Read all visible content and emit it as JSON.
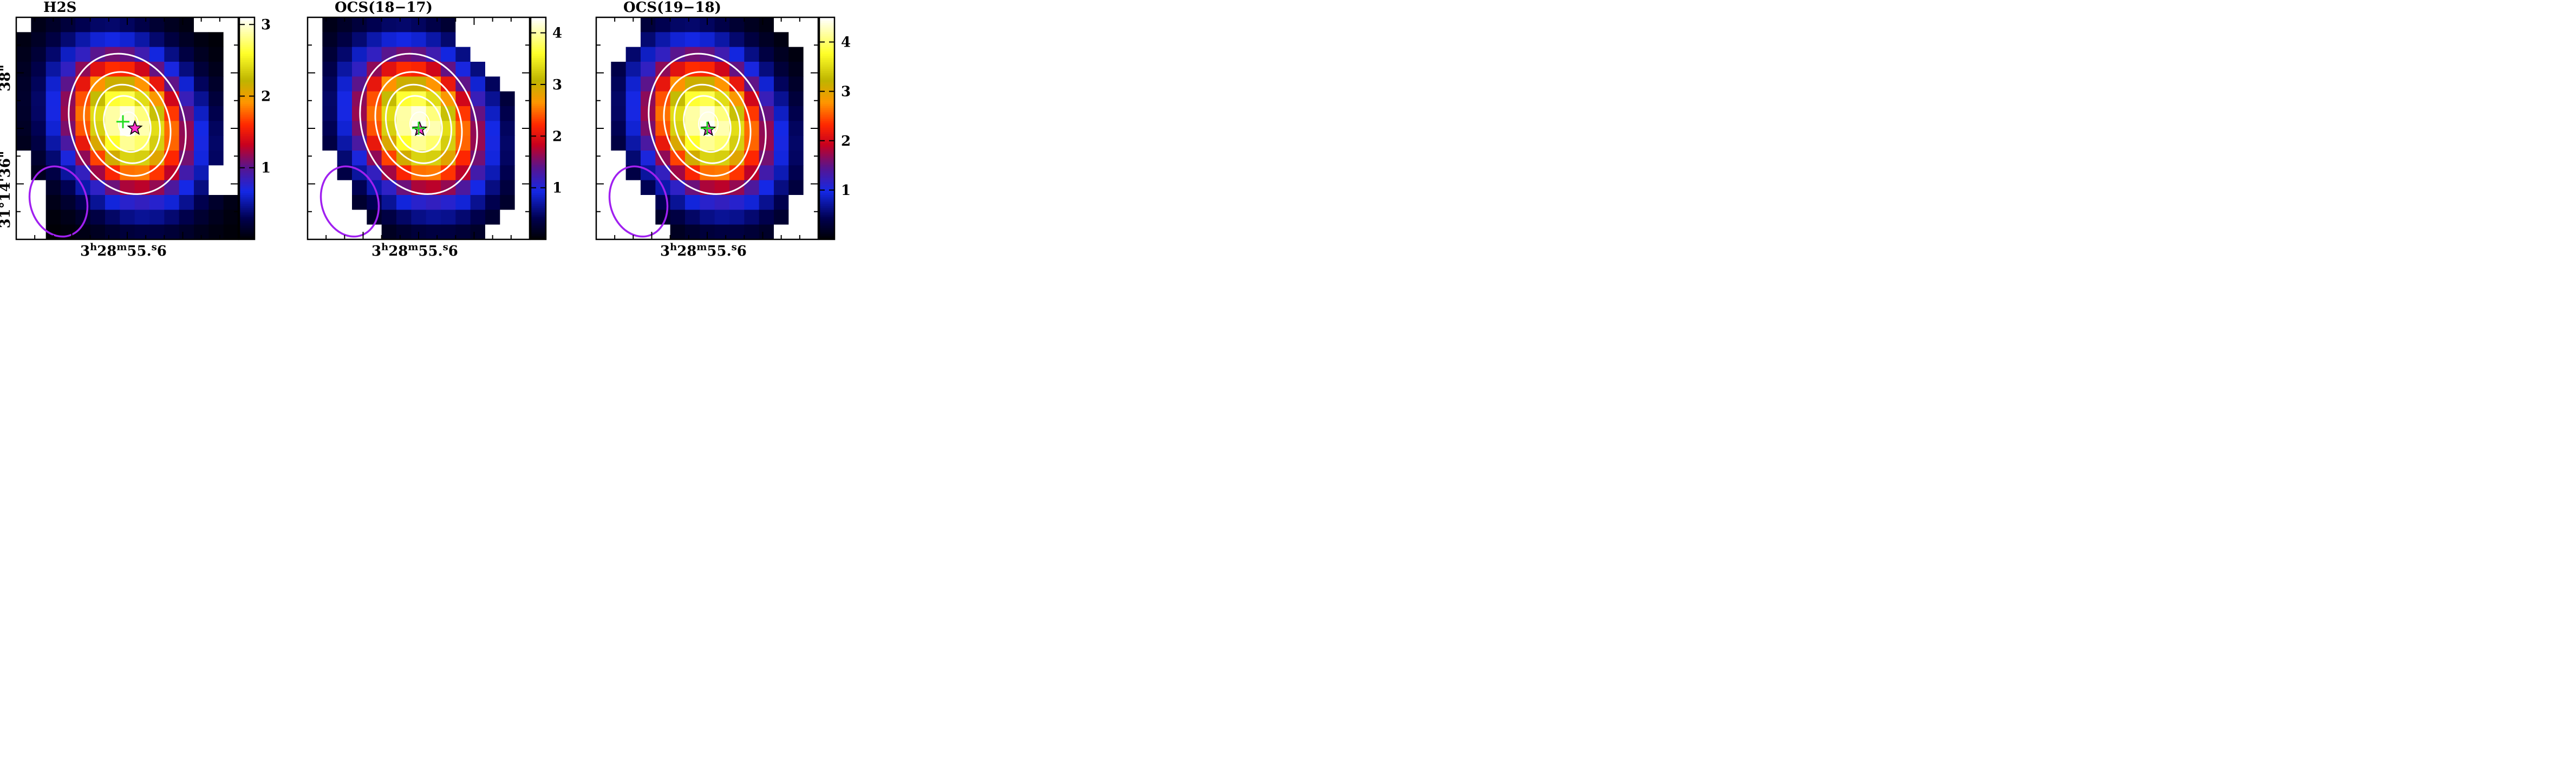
{
  "chart_data": [
    {
      "type": "heatmap",
      "title": "H2S",
      "x_tick_label": "3h28m55.6s",
      "y_tick_labels": [
        "38\"",
        "31°14'36\""
      ],
      "colorbar": {
        "ticks": [
          1,
          2,
          3
        ],
        "range": [
          0,
          3.1
        ]
      },
      "peak": 3.1,
      "center_offset": [
        0,
        0
      ],
      "contours": [
        0.3,
        0.5,
        0.7,
        0.9
      ],
      "source_marker": "magenta-star",
      "peak_marker": "green-cross"
    },
    {
      "type": "heatmap",
      "title": "OCS(18−17)",
      "x_tick_label": "3h28m55.6s",
      "y_tick_labels": [],
      "colorbar": {
        "ticks": [
          1,
          2,
          3,
          4
        ],
        "range": [
          0,
          4.3
        ]
      },
      "peak": 4.3,
      "center_offset": [
        0,
        0
      ],
      "contours": [
        0.3,
        0.5,
        0.7,
        0.9
      ],
      "source_marker": "magenta-star",
      "peak_marker": "green-cross"
    },
    {
      "type": "heatmap",
      "title": "OCS(19−18)",
      "x_tick_label": "3h28m55.6s",
      "y_tick_labels": [],
      "colorbar": {
        "ticks": [
          1,
          2,
          3,
          4
        ],
        "range": [
          0,
          4.5
        ]
      },
      "peak": 4.5,
      "center_offset": [
        0,
        0
      ],
      "contours": [
        0.3,
        0.5,
        0.7,
        0.9
      ],
      "source_marker": "magenta-star",
      "peak_marker": "green-cross"
    }
  ],
  "colors": {
    "contour": "#ffffff",
    "beam": "#a020f0",
    "star": "#ff33cc",
    "cross": "#22dd22",
    "masked": "#ffffff"
  }
}
